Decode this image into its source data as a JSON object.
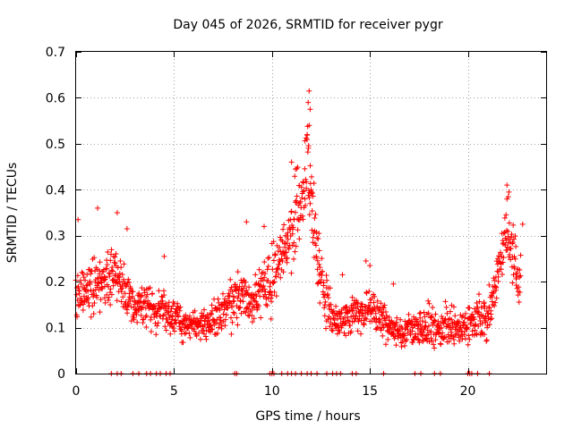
{
  "chart_data": {
    "type": "scatter",
    "title": "Day 045 of 2026, SRMTID for receiver pygr",
    "xlabel": "GPS time / hours",
    "ylabel": "SRMTID / TECUs",
    "xlim": [
      0,
      24
    ],
    "ylim": [
      0,
      0.7
    ],
    "x_ticks": [
      0,
      5,
      10,
      15,
      20
    ],
    "x_tick_labels": [
      "0",
      "5",
      "10",
      "15",
      "20"
    ],
    "y_ticks": [
      0,
      0.1,
      0.2,
      0.3,
      0.4,
      0.5,
      0.6,
      0.7
    ],
    "y_tick_labels": [
      "0",
      "0.1",
      "0.2",
      "0.3",
      "0.4",
      "0.5",
      "0.6",
      "0.7"
    ],
    "grid": true,
    "marker": "+",
    "marker_color": "#ff0000",
    "series": [
      {
        "name": "SRMTID",
        "color": "#ff0000",
        "envelope": [
          [
            0.0,
            0.17,
            0.05
          ],
          [
            0.5,
            0.18,
            0.05
          ],
          [
            1.0,
            0.2,
            0.06
          ],
          [
            1.5,
            0.19,
            0.06
          ],
          [
            2.0,
            0.22,
            0.06
          ],
          [
            2.5,
            0.18,
            0.05
          ],
          [
            3.0,
            0.14,
            0.04
          ],
          [
            3.5,
            0.15,
            0.04
          ],
          [
            4.0,
            0.13,
            0.04
          ],
          [
            4.5,
            0.14,
            0.04
          ],
          [
            5.0,
            0.12,
            0.03
          ],
          [
            5.5,
            0.11,
            0.04
          ],
          [
            6.0,
            0.1,
            0.03
          ],
          [
            6.5,
            0.11,
            0.03
          ],
          [
            7.0,
            0.12,
            0.04
          ],
          [
            7.5,
            0.13,
            0.04
          ],
          [
            8.0,
            0.16,
            0.05
          ],
          [
            8.5,
            0.17,
            0.05
          ],
          [
            9.0,
            0.15,
            0.05
          ],
          [
            9.5,
            0.18,
            0.05
          ],
          [
            10.0,
            0.2,
            0.06
          ],
          [
            10.5,
            0.26,
            0.06
          ],
          [
            11.0,
            0.3,
            0.07
          ],
          [
            11.5,
            0.38,
            0.08
          ],
          [
            11.8,
            0.46,
            0.08
          ],
          [
            12.0,
            0.38,
            0.08
          ],
          [
            12.3,
            0.26,
            0.06
          ],
          [
            12.6,
            0.18,
            0.05
          ],
          [
            13.0,
            0.13,
            0.04
          ],
          [
            13.5,
            0.11,
            0.03
          ],
          [
            14.0,
            0.13,
            0.04
          ],
          [
            14.5,
            0.13,
            0.04
          ],
          [
            15.0,
            0.14,
            0.04
          ],
          [
            15.5,
            0.12,
            0.04
          ],
          [
            16.0,
            0.1,
            0.03
          ],
          [
            16.5,
            0.09,
            0.03
          ],
          [
            17.0,
            0.1,
            0.03
          ],
          [
            17.5,
            0.1,
            0.03
          ],
          [
            18.0,
            0.11,
            0.04
          ],
          [
            18.5,
            0.1,
            0.03
          ],
          [
            19.0,
            0.11,
            0.04
          ],
          [
            19.5,
            0.1,
            0.03
          ],
          [
            20.0,
            0.11,
            0.04
          ],
          [
            20.5,
            0.12,
            0.04
          ],
          [
            21.0,
            0.12,
            0.04
          ],
          [
            21.5,
            0.2,
            0.05
          ],
          [
            22.0,
            0.31,
            0.06
          ],
          [
            22.3,
            0.25,
            0.06
          ],
          [
            22.7,
            0.2,
            0.05
          ]
        ],
        "peaks": [
          [
            11.9,
            0.615
          ],
          [
            11.85,
            0.59
          ],
          [
            11.95,
            0.575
          ],
          [
            11.9,
            0.54
          ],
          [
            11.8,
            0.52
          ],
          [
            11.0,
            0.46
          ],
          [
            11.2,
            0.445
          ],
          [
            12.0,
            0.4
          ],
          [
            22.0,
            0.41
          ],
          [
            22.1,
            0.395
          ],
          [
            22.0,
            0.38
          ],
          [
            1.1,
            0.36
          ],
          [
            2.1,
            0.35
          ],
          [
            8.7,
            0.33
          ],
          [
            0.1,
            0.335
          ],
          [
            2.6,
            0.315
          ],
          [
            22.8,
            0.325
          ],
          [
            9.6,
            0.32
          ],
          [
            12.4,
            0.305
          ],
          [
            4.5,
            0.255
          ],
          [
            14.8,
            0.245
          ],
          [
            13.6,
            0.215
          ],
          [
            15.0,
            0.235
          ],
          [
            16.2,
            0.195
          ]
        ],
        "zero_hours": [
          1.8,
          2.1,
          2.3,
          2.9,
          3.2,
          3.6,
          3.8,
          4.1,
          4.3,
          4.6,
          4.8,
          8.1,
          8.2,
          9.9,
          10.0,
          10.1,
          10.5,
          10.8,
          11.0,
          11.2,
          11.5,
          11.8,
          12.0,
          12.3,
          12.8,
          13.1,
          13.3,
          13.5,
          14.1,
          14.3,
          15.7,
          17.3,
          17.6,
          18.3,
          18.6,
          20.0,
          20.1,
          20.2,
          20.5,
          21.1
        ]
      }
    ]
  }
}
